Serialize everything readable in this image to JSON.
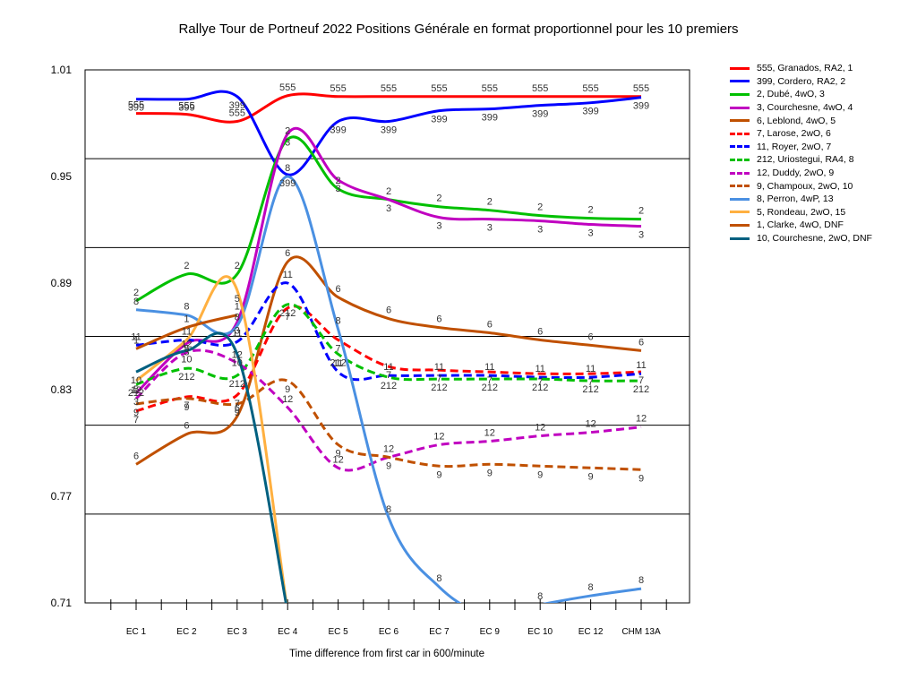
{
  "chart_data": {
    "type": "line",
    "title": "Rallye Tour de Portneuf 2022  Positions Générale en format proportionnel pour les 10 premiers",
    "xlabel": "Time difference from first car in 600/minute",
    "ylabel": "",
    "categories": [
      "EC 1",
      "EC 2",
      "EC 3",
      "EC 4",
      "EC 5",
      "EC 6",
      "EC 7",
      "EC 9",
      "EC 10",
      "EC 12",
      "CHM 13A"
    ],
    "yticks": [
      "1.01",
      "0.95",
      "0.89",
      "0.83",
      "0.77",
      "0.71"
    ],
    "ylim": [
      0.71,
      1.01
    ],
    "grid": true,
    "legend_position": "right",
    "series": [
      {
        "name": "555, Granados, RA2, 1",
        "color": "#ff0000",
        "dashed": false,
        "label": "555",
        "values": [
          0.9855,
          0.985,
          0.981,
          0.9955,
          0.995,
          0.995,
          0.995,
          0.995,
          0.995,
          0.995,
          0.995
        ]
      },
      {
        "name": "399, Cordero, RA2, 2",
        "color": "#0000ff",
        "dashed": false,
        "label": "399",
        "values": [
          0.9935,
          0.9935,
          0.995,
          0.951,
          0.981,
          0.981,
          0.987,
          0.988,
          0.99,
          0.9915,
          0.9945
        ]
      },
      {
        "name": "2, Dubé, 4wO, 3",
        "color": "#00c000",
        "dashed": false,
        "label": "2",
        "values": [
          0.88,
          0.895,
          0.895,
          0.971,
          0.943,
          0.937,
          0.933,
          0.931,
          0.928,
          0.9265,
          0.926
        ]
      },
      {
        "name": "3, Courchesne, 4wO, 4",
        "color": "#c000c0",
        "dashed": false,
        "label": "3",
        "values": [
          0.828,
          0.856,
          0.868,
          0.974,
          0.948,
          0.937,
          0.927,
          0.926,
          0.925,
          0.923,
          0.922
        ]
      },
      {
        "name": "6, Leblond, 4wO, 5",
        "color": "#c05000",
        "dashed": false,
        "label": "6",
        "values": [
          0.788,
          0.805,
          0.815,
          0.902,
          0.882,
          0.87,
          0.865,
          0.862,
          0.858,
          0.855,
          0.852
        ]
      },
      {
        "name": "7, Larose, 2wO, 6",
        "color": "#ff0000",
        "dashed": true,
        "label": "7",
        "values": [
          0.818,
          0.826,
          0.827,
          0.876,
          0.858,
          0.843,
          0.841,
          0.84,
          0.839,
          0.839,
          0.84
        ]
      },
      {
        "name": "11, Royer, 2wO, 7",
        "color": "#0000ff",
        "dashed": true,
        "label": "11",
        "values": [
          0.855,
          0.858,
          0.857,
          0.89,
          0.84,
          0.838,
          0.838,
          0.838,
          0.837,
          0.837,
          0.839
        ]
      },
      {
        "name": "212, Uriostegui, RA4, 8",
        "color": "#00c000",
        "dashed": true,
        "label": "212",
        "values": [
          0.833,
          0.842,
          0.838,
          0.878,
          0.85,
          0.837,
          0.836,
          0.836,
          0.836,
          0.835,
          0.835
        ]
      },
      {
        "name": "12, Duddy, 2wO, 9",
        "color": "#c000c0",
        "dashed": true,
        "label": "12",
        "values": [
          0.825,
          0.851,
          0.845,
          0.82,
          0.786,
          0.792,
          0.799,
          0.801,
          0.804,
          0.806,
          0.809
        ]
      },
      {
        "name": "9, Champoux, 2wO, 10",
        "color": "#c05000",
        "dashed": true,
        "label": "9",
        "values": [
          0.822,
          0.825,
          0.822,
          0.835,
          0.799,
          0.792,
          0.787,
          0.788,
          0.787,
          0.786,
          0.785
        ]
      },
      {
        "name": "8, Perron, 4wP, 13",
        "color": "#4a90e2",
        "dashed": false,
        "label": "8",
        "values": [
          0.875,
          0.872,
          0.866,
          0.95,
          0.864,
          0.758,
          0.719,
          0.703,
          0.709,
          0.714,
          0.718
        ]
      },
      {
        "name": "5, Rondeau, 2wO, 15",
        "color": "#ffb040",
        "dashed": false,
        "label": "5",
        "values": [
          0.835,
          0.858,
          0.886,
          0.705,
          null,
          null,
          null,
          null,
          null,
          null,
          null
        ]
      },
      {
        "name": "1, Clarke, 4wO, DNF",
        "color": "#c05000",
        "dashed": false,
        "label": "1",
        "values": [
          0.853,
          0.865,
          0.872,
          null,
          null,
          null,
          null,
          null,
          null,
          null,
          null
        ]
      },
      {
        "name": "10, Courchesne, 2wO, DNF",
        "color": "#006080",
        "dashed": false,
        "label": "10",
        "values": [
          0.84,
          0.852,
          0.85,
          0.705,
          null,
          null,
          null,
          null,
          null,
          null,
          null
        ]
      }
    ]
  }
}
